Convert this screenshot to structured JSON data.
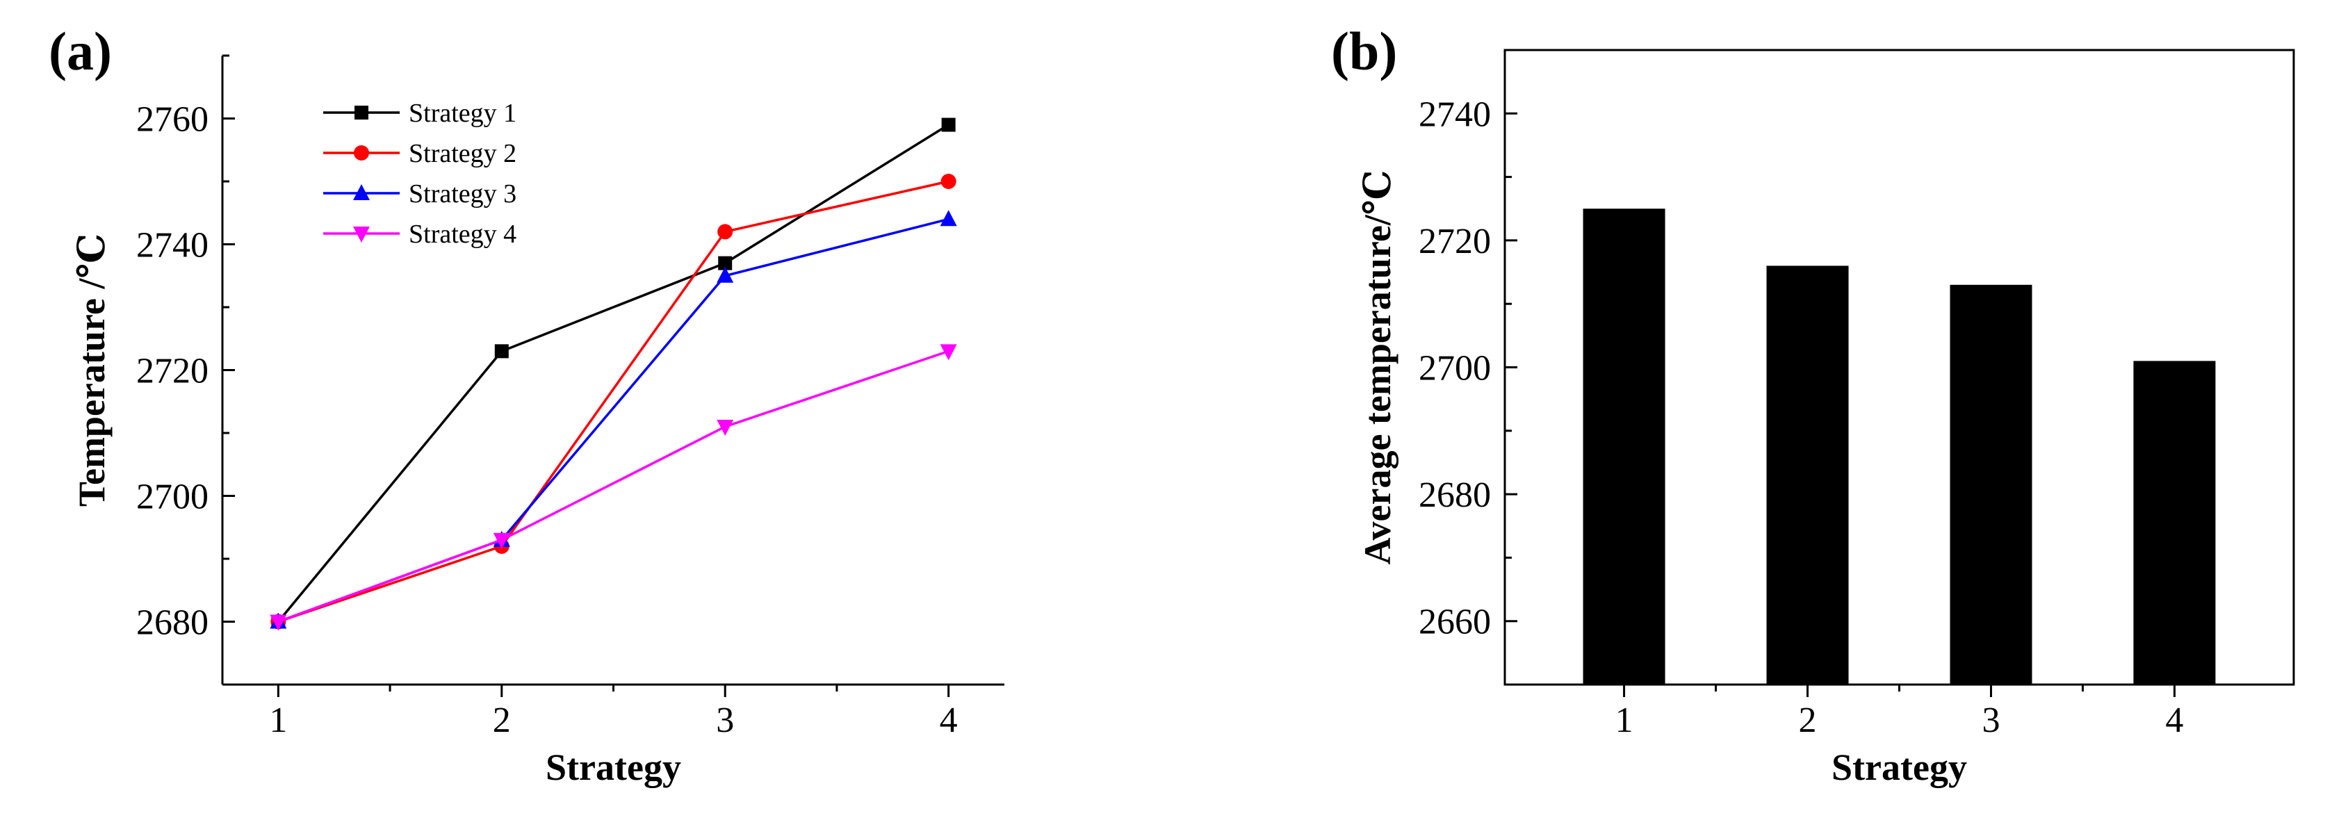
{
  "chart_data": [
    {
      "panel_label": "(a)",
      "type": "line",
      "categories": [
        "1",
        "2",
        "3",
        "4"
      ],
      "x": [
        1,
        2,
        3,
        4
      ],
      "xlabel": "Strategy",
      "ylabel": "Temperature /℃",
      "xlim": [
        0.75,
        4.25
      ],
      "ylim": [
        2670,
        2770
      ],
      "yticks": [
        2680,
        2700,
        2720,
        2740,
        2760
      ],
      "yticklabels": [
        "2680",
        "2700",
        "2720",
        "2740",
        "2760"
      ],
      "legend_position": "top-left",
      "grid": false,
      "series": [
        {
          "name": "Strategy 1",
          "values": [
            2680,
            2723,
            2737,
            2759
          ],
          "color": "#000000",
          "marker": "square"
        },
        {
          "name": "Strategy 2",
          "values": [
            2680,
            2692,
            2742,
            2750
          ],
          "color": "#ff0000",
          "marker": "circle"
        },
        {
          "name": "Strategy 3",
          "values": [
            2680,
            2693,
            2735,
            2744
          ],
          "color": "#0000ff",
          "marker": "triangle-up"
        },
        {
          "name": "Strategy 4",
          "values": [
            2680,
            2693,
            2711,
            2723
          ],
          "color": "#ff00ff",
          "marker": "triangle-down"
        }
      ]
    },
    {
      "panel_label": "(b)",
      "type": "bar",
      "categories": [
        "1",
        "2",
        "3",
        "4"
      ],
      "values": [
        2725,
        2716,
        2713,
        2701
      ],
      "xlabel": "Strategy",
      "ylabel": "Average temperature/℃",
      "ylim": [
        2650,
        2750
      ],
      "yticks": [
        2660,
        2680,
        2700,
        2720,
        2740
      ],
      "yticklabels": [
        "2660",
        "2680",
        "2700",
        "2720",
        "2740"
      ],
      "bar_color": "#000000",
      "grid": false
    }
  ]
}
